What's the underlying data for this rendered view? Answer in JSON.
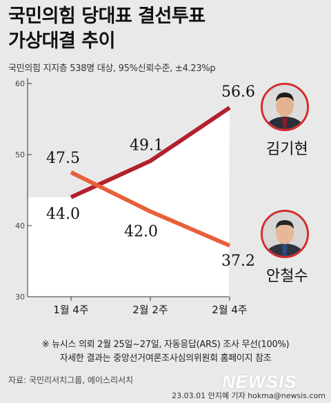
{
  "title": {
    "line1": "국민의힘 당대표 결선투표",
    "line2": "가상대결 추이"
  },
  "subtitle": "국민의힘 지지층 538명 대상, 95%신뢰수준, ±4.23%p",
  "chart_data": {
    "type": "line",
    "categories": [
      "1월 4주",
      "2월 2주",
      "2월 4주"
    ],
    "yticks": [
      30,
      40,
      50,
      60
    ],
    "ylim": [
      30,
      60
    ],
    "grid": false,
    "series": [
      {
        "name": "김기현",
        "values": [
          44.0,
          49.1,
          56.6
        ],
        "labels": [
          "44.0",
          "49.1",
          "56.6"
        ],
        "color": "#b3202c"
      },
      {
        "name": "안철수",
        "values": [
          47.5,
          42.0,
          37.2
        ],
        "labels": [
          "47.5",
          "42.0",
          "37.2"
        ],
        "color": "#e8603a"
      }
    ]
  },
  "candidates": {
    "kim": {
      "name": "김기현",
      "accent": "#d32a2a"
    },
    "ahn": {
      "name": "안철수",
      "accent": "#d32a2a"
    }
  },
  "footnote": {
    "line1": "※ 뉴시스 의뢰 2월 25일~27일, 자동응답(ARS) 조사 무선(100%)",
    "line2": "자세한 결과는 중앙선거여론조사심의위원회 홈페이지 참조"
  },
  "source": "자료: 국민리서치그룹, 에이스리서치",
  "logo": "NEWSIS",
  "credit": "23.03.01 안지혜 기자 hokma@newsis.com"
}
